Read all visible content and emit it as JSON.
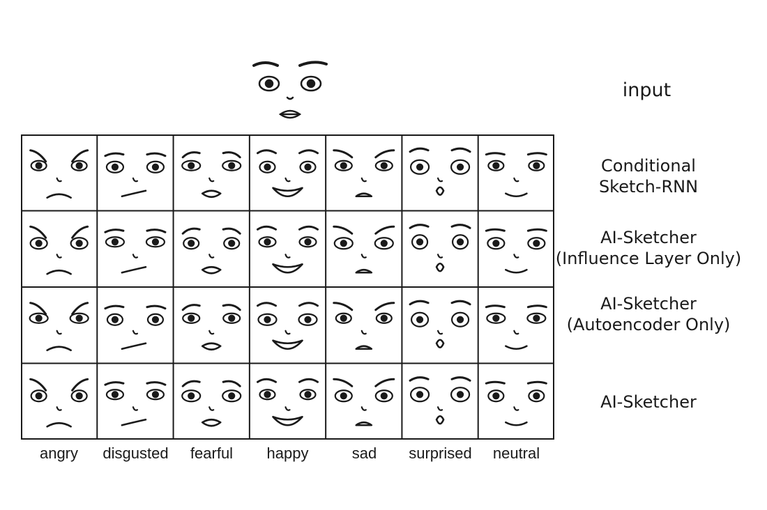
{
  "input_label": "input",
  "rows": [
    {
      "lines": [
        "Conditional",
        "Sketch-RNN"
      ]
    },
    {
      "lines": [
        "AI-Sketcher",
        "(Influence Layer Only)"
      ]
    },
    {
      "lines": [
        "AI-Sketcher",
        "(Autoencoder Only)"
      ]
    },
    {
      "lines": [
        "AI-Sketcher"
      ]
    }
  ],
  "columns": [
    "angry",
    "disgusted",
    "fearful",
    "happy",
    "sad",
    "surprised",
    "neutral"
  ]
}
